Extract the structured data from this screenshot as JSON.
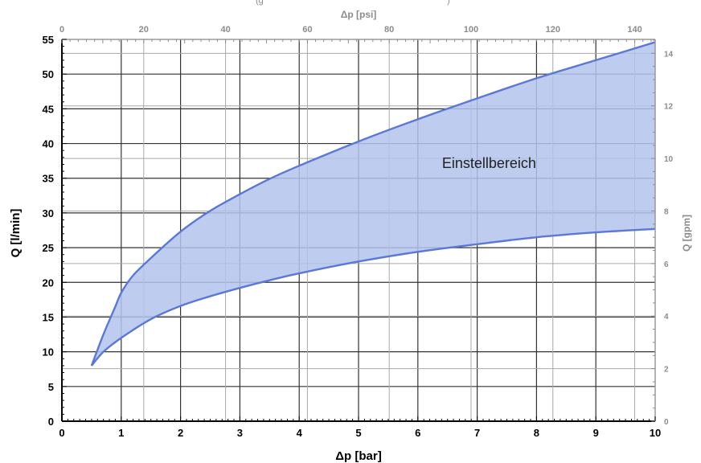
{
  "chart_data": {
    "type": "area",
    "title_partial": "(g",
    "title_partial_end": ")",
    "x_bottom": {
      "label": "Δp [bar]",
      "range": [
        0,
        10
      ],
      "ticks": [
        0,
        1,
        2,
        3,
        4,
        5,
        6,
        7,
        8,
        9,
        10
      ]
    },
    "x_top": {
      "label": "Δp [psi]",
      "range": [
        0,
        145
      ],
      "ticks": [
        0,
        20,
        40,
        60,
        80,
        100,
        120,
        140
      ]
    },
    "y_left": {
      "label": "Q [l/min]",
      "range": [
        0,
        55
      ],
      "ticks": [
        0,
        5,
        10,
        15,
        20,
        25,
        30,
        35,
        40,
        45,
        50,
        55
      ]
    },
    "y_right": {
      "label": "Q [gpm]",
      "range": [
        0,
        14.53
      ],
      "ticks": [
        0,
        2,
        4,
        6,
        8,
        10,
        12,
        14
      ]
    },
    "grid": true,
    "annotation": {
      "text": "Einstellbereich",
      "x": 7.2,
      "y": 36.5
    },
    "colors": {
      "fill": "#b3c3ec",
      "line": "#5b78d6",
      "grid": "#333333",
      "secondary_axis": "#8c8c8c"
    },
    "series": [
      {
        "x": [
          0.5,
          0.7,
          0.9,
          1.0,
          1.2,
          1.5,
          2.0,
          2.5,
          3.0,
          3.5,
          4.0,
          5.0,
          6.0,
          7.0,
          8.0,
          9.0,
          10.0
        ],
        "values": [
          8.0,
          12.5,
          16.5,
          18.5,
          21.0,
          23.5,
          27.3,
          30.3,
          32.7,
          34.9,
          36.8,
          40.3,
          43.5,
          46.5,
          49.4,
          52.0,
          54.6
        ]
      },
      {
        "x": [
          0.5,
          0.7,
          1.0,
          1.5,
          2.0,
          2.5,
          3.0,
          3.5,
          4.0,
          5.0,
          6.0,
          7.0,
          8.0,
          9.0,
          10.0
        ],
        "values": [
          8.0,
          10.0,
          12.0,
          14.7,
          16.6,
          18.0,
          19.2,
          20.3,
          21.3,
          23.0,
          24.4,
          25.5,
          26.5,
          27.2,
          27.7
        ]
      }
    ]
  }
}
